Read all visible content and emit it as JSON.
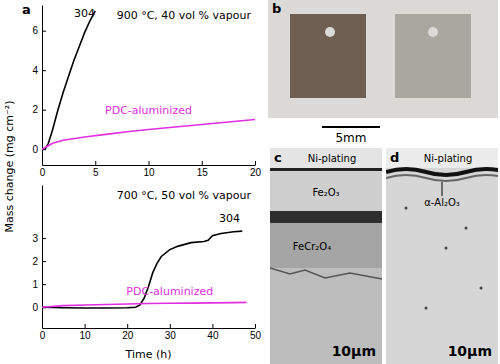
{
  "chart_data": [
    {
      "type": "line",
      "title": "900 °C, 40 vol % vapour",
      "xlim": [
        0,
        20
      ],
      "ylim": [
        -0.8,
        7.3
      ],
      "xticks": [
        0,
        5,
        10,
        15,
        20
      ],
      "yticks": [
        0,
        2,
        4,
        6
      ],
      "series": [
        {
          "name": "304",
          "color": "#000000",
          "label_at": [
            4,
            6.7
          ],
          "x": [
            0,
            0.3,
            0.6,
            1,
            1.5,
            2,
            2.5,
            3,
            3.5,
            4,
            4.5,
            5
          ],
          "values": [
            0,
            0,
            0.3,
            1.0,
            2.0,
            2.9,
            3.7,
            4.5,
            5.2,
            5.9,
            6.5,
            7.0
          ]
        },
        {
          "name": "PDC-aluminized",
          "color": "#e02ee0",
          "label_at": [
            10,
            1.8
          ],
          "x": [
            0,
            0.5,
            1,
            2,
            4,
            6,
            8,
            10,
            12,
            14,
            16,
            18,
            20
          ],
          "values": [
            0,
            0.15,
            0.3,
            0.45,
            0.62,
            0.75,
            0.88,
            1.0,
            1.1,
            1.2,
            1.3,
            1.4,
            1.5
          ]
        }
      ]
    },
    {
      "type": "line",
      "title": "700 °C, 50 vol % vapour",
      "xlabel": "Time (h)",
      "xlim": [
        0,
        50
      ],
      "ylim": [
        -0.9,
        5.3
      ],
      "xticks": [
        0,
        10,
        20,
        30,
        40,
        50
      ],
      "yticks": [
        0,
        1,
        2,
        3
      ],
      "series": [
        {
          "name": "304",
          "color": "#000000",
          "label_at": [
            44,
            3.7
          ],
          "x": [
            0,
            5,
            10,
            15,
            20,
            22,
            23,
            24,
            25,
            26,
            27,
            28,
            30,
            32,
            35,
            38,
            39,
            40,
            42,
            45,
            47
          ],
          "values": [
            0,
            -0.02,
            -0.03,
            -0.03,
            -0.02,
            0.0,
            0.1,
            0.4,
            0.9,
            1.5,
            1.9,
            2.2,
            2.5,
            2.65,
            2.8,
            2.85,
            2.9,
            3.1,
            3.2,
            3.27,
            3.3
          ]
        },
        {
          "name": "PDC-aluminized",
          "color": "#e02ee0",
          "label_at": [
            30,
            0.55
          ],
          "x": [
            0,
            5,
            10,
            15,
            20,
            25,
            30,
            35,
            40,
            45,
            48
          ],
          "values": [
            0,
            0.07,
            0.1,
            0.12,
            0.14,
            0.16,
            0.17,
            0.18,
            0.19,
            0.2,
            0.21
          ]
        }
      ]
    }
  ],
  "figure": {
    "panel_label": "a",
    "ylabel": "Mass change (mg cm⁻²)"
  },
  "photo_panel": {
    "label": "b",
    "scale_bar": "5mm"
  },
  "micrographs": [
    {
      "label": "c",
      "layers": [
        "Ni-plating",
        "Fe₂O₃",
        "FeCr₂O₄"
      ],
      "scale_bar": "10μm"
    },
    {
      "label": "d",
      "layers": [
        "Ni-plating",
        "α-Al₂O₃"
      ],
      "scale_bar": "10μm"
    }
  ]
}
